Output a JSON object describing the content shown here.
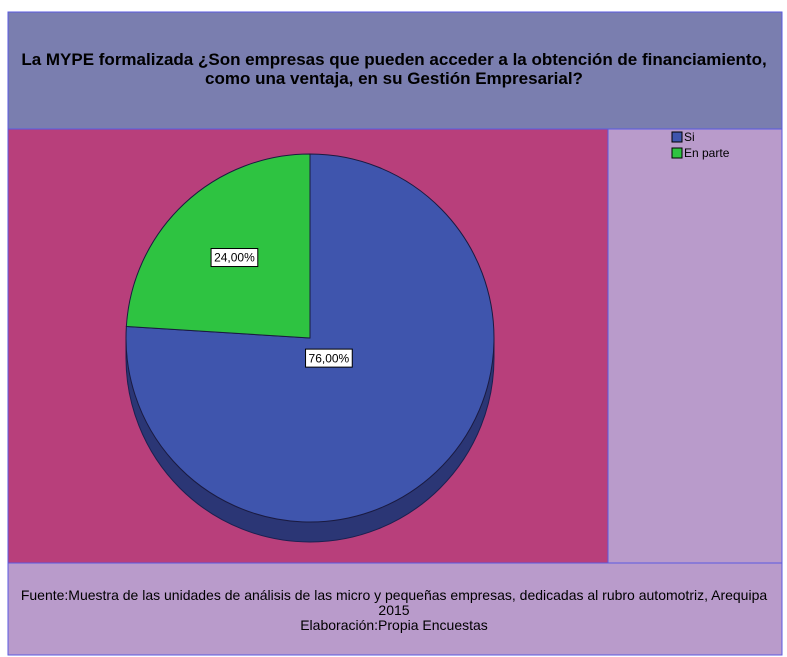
{
  "chart_data": {
    "type": "pie",
    "title": "La MYPE formalizada ¿Son empresas que pueden acceder a la obtención de financiamiento, como una ventaja, en su Gestión Empresarial?",
    "categories": [
      "Si",
      "En parte"
    ],
    "values": [
      76,
      24
    ],
    "value_labels": [
      "76,00%",
      "24,00%"
    ],
    "colors": [
      "#3f55ad",
      "#2ec341"
    ],
    "source": "Fuente:Muestra de las unidades de análisis de las micro y pequeñas empresas, dedicadas al rubro automotriz, Arequipa 2015",
    "credit": "Elaboración:Propia Encuestas",
    "legend": "top-right"
  }
}
